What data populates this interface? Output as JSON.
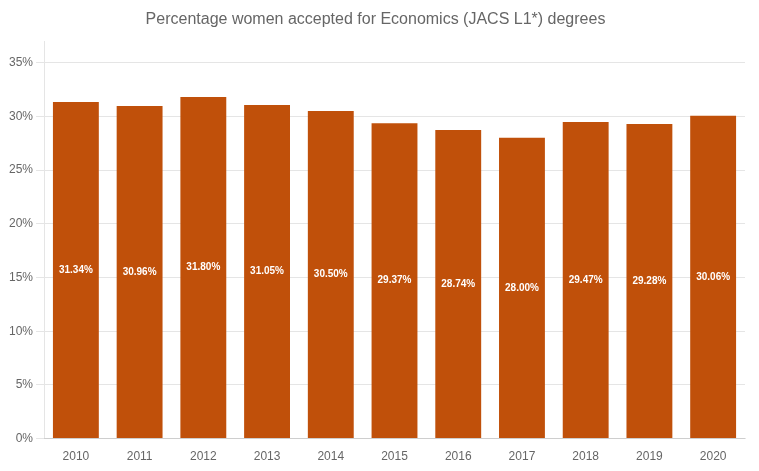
{
  "chart_data": {
    "type": "bar",
    "title": "Percentage women accepted for Economics (JACS L1*) degrees",
    "categories": [
      "2010",
      "2011",
      "2012",
      "2013",
      "2014",
      "2015",
      "2016",
      "2017",
      "2018",
      "2019",
      "2020"
    ],
    "values": [
      31.34,
      30.96,
      31.8,
      31.05,
      30.5,
      29.37,
      28.74,
      28.0,
      29.47,
      29.28,
      30.06
    ],
    "value_labels": [
      "31.34%",
      "30.96%",
      "31.80%",
      "31.05%",
      "30.50%",
      "29.37%",
      "28.74%",
      "28.00%",
      "29.47%",
      "29.28%",
      "30.06%"
    ],
    "color": "#C0500A",
    "ylim": [
      0,
      37
    ],
    "yticks": [
      {
        "value": 0,
        "label": "0%"
      },
      {
        "value": 5,
        "label": "5%"
      },
      {
        "value": 10,
        "label": "10%"
      },
      {
        "value": 15,
        "label": "15%"
      },
      {
        "value": 20,
        "label": "20%"
      },
      {
        "value": 25,
        "label": "25%"
      },
      {
        "value": 30,
        "label": "30%"
      },
      {
        "value": 35,
        "label": "35%"
      }
    ],
    "grid": true,
    "data_labels": true
  }
}
